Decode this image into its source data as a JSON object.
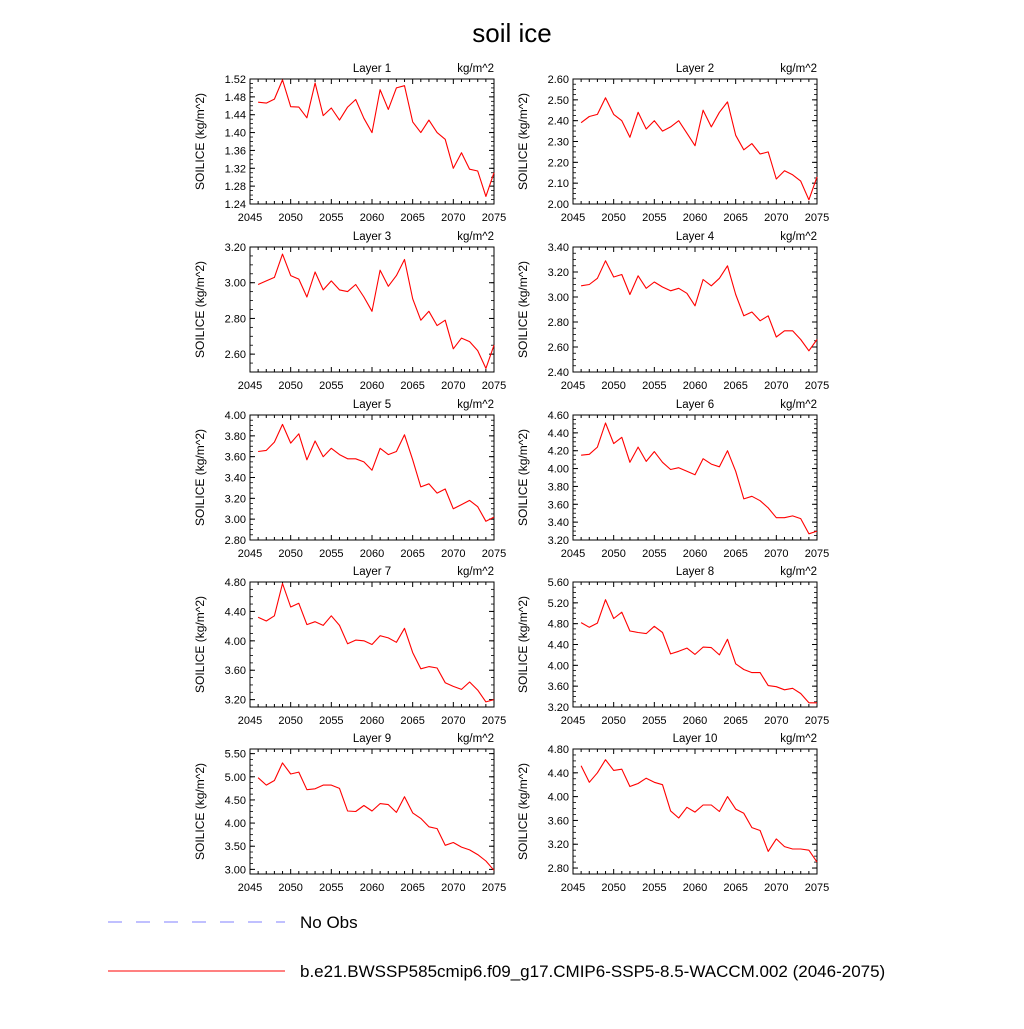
{
  "figure": {
    "title": "soil ice",
    "legend": [
      {
        "label": "No Obs",
        "color": "#8080ff",
        "style": "dashed"
      },
      {
        "label": "b.e21.BWSSP585cmip6.f09_g17.CMIP6-SSP5-8.5-WACCM.002 (2046-2075)",
        "color": "#ff0000",
        "style": "solid"
      }
    ]
  },
  "chart_data": [
    {
      "type": "line",
      "title": "Layer 1",
      "units": "kg/m^2",
      "ylabel": "SOILICE  (kg/m^2)",
      "xlabel": "",
      "xlim": [
        2045,
        2075
      ],
      "ylim": [
        1.24,
        1.52
      ],
      "xticks": [
        "2045",
        "2050",
        "2055",
        "2060",
        "2065",
        "2070",
        "2075"
      ],
      "yticks": [
        "1.24",
        "1.28",
        "1.32",
        "1.36",
        "1.40",
        "1.44",
        "1.48",
        "1.52"
      ],
      "x": [
        2046,
        2047,
        2048,
        2049,
        2050,
        2051,
        2052,
        2053,
        2054,
        2055,
        2056,
        2057,
        2058,
        2059,
        2060,
        2061,
        2062,
        2063,
        2064,
        2065,
        2066,
        2067,
        2068,
        2069,
        2070,
        2071,
        2072,
        2073,
        2074,
        2075
      ],
      "series": [
        {
          "name": "b.e21.BWSSP585cmip6.f09_g17.CMIP6-SSP5-8.5-WACCM.002 (2046-2075)",
          "color": "#ff0000",
          "values": [
            1.468,
            1.466,
            1.475,
            1.518,
            1.458,
            1.457,
            1.433,
            1.511,
            1.438,
            1.455,
            1.428,
            1.457,
            1.474,
            1.432,
            1.4,
            1.496,
            1.452,
            1.5,
            1.505,
            1.424,
            1.4,
            1.428,
            1.4,
            1.385,
            1.32,
            1.355,
            1.318,
            1.314,
            1.257,
            1.31
          ]
        }
      ]
    },
    {
      "type": "line",
      "title": "Layer 2",
      "units": "kg/m^2",
      "ylabel": "SOILICE  (kg/m^2)",
      "xlabel": "",
      "xlim": [
        2045,
        2075
      ],
      "ylim": [
        2.0,
        2.6
      ],
      "xticks": [
        "2045",
        "2050",
        "2055",
        "2060",
        "2065",
        "2070",
        "2075"
      ],
      "yticks": [
        "2.00",
        "2.10",
        "2.20",
        "2.30",
        "2.40",
        "2.50",
        "2.60"
      ],
      "x": [
        2046,
        2047,
        2048,
        2049,
        2050,
        2051,
        2052,
        2053,
        2054,
        2055,
        2056,
        2057,
        2058,
        2059,
        2060,
        2061,
        2062,
        2063,
        2064,
        2065,
        2066,
        2067,
        2068,
        2069,
        2070,
        2071,
        2072,
        2073,
        2074,
        2075
      ],
      "series": [
        {
          "name": "b.e21.BWSSP585cmip6.f09_g17.CMIP6-SSP5-8.5-WACCM.002 (2046-2075)",
          "color": "#ff0000",
          "values": [
            2.39,
            2.42,
            2.43,
            2.51,
            2.43,
            2.4,
            2.32,
            2.44,
            2.36,
            2.4,
            2.35,
            2.37,
            2.4,
            2.34,
            2.28,
            2.45,
            2.37,
            2.44,
            2.49,
            2.33,
            2.26,
            2.29,
            2.24,
            2.25,
            2.12,
            2.16,
            2.14,
            2.11,
            2.02,
            2.13
          ]
        }
      ]
    },
    {
      "type": "line",
      "title": "Layer 3",
      "units": "kg/m^2",
      "ylabel": "SOILICE  (kg/m^2)",
      "xlabel": "",
      "xlim": [
        2045,
        2075
      ],
      "ylim": [
        2.5,
        3.2
      ],
      "xticks": [
        "2045",
        "2050",
        "2055",
        "2060",
        "2065",
        "2070",
        "2075"
      ],
      "yticks": [
        "2.60",
        "2.80",
        "3.00",
        "3.20"
      ],
      "x": [
        2046,
        2047,
        2048,
        2049,
        2050,
        2051,
        2052,
        2053,
        2054,
        2055,
        2056,
        2057,
        2058,
        2059,
        2060,
        2061,
        2062,
        2063,
        2064,
        2065,
        2066,
        2067,
        2068,
        2069,
        2070,
        2071,
        2072,
        2073,
        2074,
        2075
      ],
      "series": [
        {
          "name": "b.e21.BWSSP585cmip6.f09_g17.CMIP6-SSP5-8.5-WACCM.002 (2046-2075)",
          "color": "#ff0000",
          "values": [
            2.99,
            3.01,
            3.03,
            3.16,
            3.04,
            3.02,
            2.92,
            3.06,
            2.96,
            3.01,
            2.96,
            2.95,
            2.99,
            2.92,
            2.84,
            3.07,
            2.98,
            3.04,
            3.13,
            2.91,
            2.79,
            2.84,
            2.76,
            2.79,
            2.63,
            2.69,
            2.67,
            2.62,
            2.52,
            2.65
          ]
        }
      ]
    },
    {
      "type": "line",
      "title": "Layer 4",
      "units": "kg/m^2",
      "ylabel": "SOILICE  (kg/m^2)",
      "xlabel": "",
      "xlim": [
        2045,
        2075
      ],
      "ylim": [
        2.4,
        3.4
      ],
      "xticks": [
        "2045",
        "2050",
        "2055",
        "2060",
        "2065",
        "2070",
        "2075"
      ],
      "yticks": [
        "2.40",
        "2.60",
        "2.80",
        "3.00",
        "3.20",
        "3.40"
      ],
      "x": [
        2046,
        2047,
        2048,
        2049,
        2050,
        2051,
        2052,
        2053,
        2054,
        2055,
        2056,
        2057,
        2058,
        2059,
        2060,
        2061,
        2062,
        2063,
        2064,
        2065,
        2066,
        2067,
        2068,
        2069,
        2070,
        2071,
        2072,
        2073,
        2074,
        2075
      ],
      "series": [
        {
          "name": "b.e21.BWSSP585cmip6.f09_g17.CMIP6-SSP5-8.5-WACCM.002 (2046-2075)",
          "color": "#ff0000",
          "values": [
            3.09,
            3.1,
            3.15,
            3.29,
            3.16,
            3.18,
            3.02,
            3.17,
            3.07,
            3.12,
            3.08,
            3.05,
            3.07,
            3.03,
            2.93,
            3.14,
            3.09,
            3.15,
            3.25,
            3.02,
            2.85,
            2.88,
            2.81,
            2.85,
            2.68,
            2.73,
            2.73,
            2.66,
            2.57,
            2.66
          ]
        }
      ]
    },
    {
      "type": "line",
      "title": "Layer 5",
      "units": "kg/m^2",
      "ylabel": "SOILICE  (kg/m^2)",
      "xlabel": "",
      "xlim": [
        2045,
        2075
      ],
      "ylim": [
        2.8,
        4.0
      ],
      "xticks": [
        "2045",
        "2050",
        "2055",
        "2060",
        "2065",
        "2070",
        "2075"
      ],
      "yticks": [
        "2.80",
        "3.00",
        "3.20",
        "3.40",
        "3.60",
        "3.80",
        "4.00"
      ],
      "x": [
        2046,
        2047,
        2048,
        2049,
        2050,
        2051,
        2052,
        2053,
        2054,
        2055,
        2056,
        2057,
        2058,
        2059,
        2060,
        2061,
        2062,
        2063,
        2064,
        2065,
        2066,
        2067,
        2068,
        2069,
        2070,
        2071,
        2072,
        2073,
        2074,
        2075
      ],
      "series": [
        {
          "name": "b.e21.BWSSP585cmip6.f09_g17.CMIP6-SSP5-8.5-WACCM.002 (2046-2075)",
          "color": "#ff0000",
          "values": [
            3.65,
            3.66,
            3.74,
            3.91,
            3.73,
            3.82,
            3.57,
            3.75,
            3.6,
            3.68,
            3.62,
            3.58,
            3.58,
            3.55,
            3.47,
            3.68,
            3.62,
            3.65,
            3.81,
            3.57,
            3.31,
            3.34,
            3.25,
            3.29,
            3.1,
            3.14,
            3.18,
            3.12,
            2.98,
            3.02
          ]
        }
      ]
    },
    {
      "type": "line",
      "title": "Layer 6",
      "units": "kg/m^2",
      "ylabel": "SOILICE  (kg/m^2)",
      "xlabel": "",
      "xlim": [
        2045,
        2075
      ],
      "ylim": [
        3.2,
        4.6
      ],
      "xticks": [
        "2045",
        "2050",
        "2055",
        "2060",
        "2065",
        "2070",
        "2075"
      ],
      "yticks": [
        "3.20",
        "3.40",
        "3.60",
        "3.80",
        "4.00",
        "4.20",
        "4.40",
        "4.60"
      ],
      "x": [
        2046,
        2047,
        2048,
        2049,
        2050,
        2051,
        2052,
        2053,
        2054,
        2055,
        2056,
        2057,
        2058,
        2059,
        2060,
        2061,
        2062,
        2063,
        2064,
        2065,
        2066,
        2067,
        2068,
        2069,
        2070,
        2071,
        2072,
        2073,
        2074,
        2075
      ],
      "series": [
        {
          "name": "b.e21.BWSSP585cmip6.f09_g17.CMIP6-SSP5-8.5-WACCM.002 (2046-2075)",
          "color": "#ff0000",
          "values": [
            4.15,
            4.16,
            4.24,
            4.51,
            4.28,
            4.35,
            4.07,
            4.24,
            4.08,
            4.19,
            4.07,
            3.99,
            4.01,
            3.97,
            3.93,
            4.11,
            4.05,
            4.02,
            4.2,
            3.97,
            3.66,
            3.69,
            3.64,
            3.56,
            3.45,
            3.45,
            3.47,
            3.44,
            3.27,
            3.3
          ]
        }
      ]
    },
    {
      "type": "line",
      "title": "Layer 7",
      "units": "kg/m^2",
      "ylabel": "SOILICE  (kg/m^2)",
      "xlabel": "",
      "xlim": [
        2045,
        2075
      ],
      "ylim": [
        3.1,
        4.8
      ],
      "xticks": [
        "2045",
        "2050",
        "2055",
        "2060",
        "2065",
        "2070",
        "2075"
      ],
      "yticks": [
        "3.20",
        "3.60",
        "4.00",
        "4.40",
        "4.80"
      ],
      "x": [
        2046,
        2047,
        2048,
        2049,
        2050,
        2051,
        2052,
        2053,
        2054,
        2055,
        2056,
        2057,
        2058,
        2059,
        2060,
        2061,
        2062,
        2063,
        2064,
        2065,
        2066,
        2067,
        2068,
        2069,
        2070,
        2071,
        2072,
        2073,
        2074,
        2075
      ],
      "series": [
        {
          "name": "b.e21.BWSSP585cmip6.f09_g17.CMIP6-SSP5-8.5-WACCM.002 (2046-2075)",
          "color": "#ff0000",
          "values": [
            4.32,
            4.27,
            4.34,
            4.78,
            4.46,
            4.51,
            4.22,
            4.26,
            4.21,
            4.34,
            4.21,
            3.96,
            4.01,
            4.0,
            3.95,
            4.07,
            4.04,
            3.98,
            4.17,
            3.84,
            3.62,
            3.65,
            3.63,
            3.43,
            3.38,
            3.34,
            3.44,
            3.33,
            3.17,
            3.2
          ]
        }
      ]
    },
    {
      "type": "line",
      "title": "Layer 8",
      "units": "kg/m^2",
      "ylabel": "SOILICE  (kg/m^2)",
      "xlabel": "",
      "xlim": [
        2045,
        2075
      ],
      "ylim": [
        3.2,
        5.6
      ],
      "xticks": [
        "2045",
        "2050",
        "2055",
        "2060",
        "2065",
        "2070",
        "2075"
      ],
      "yticks": [
        "3.20",
        "3.60",
        "4.00",
        "4.40",
        "4.80",
        "5.20",
        "5.60"
      ],
      "x": [
        2046,
        2047,
        2048,
        2049,
        2050,
        2051,
        2052,
        2053,
        2054,
        2055,
        2056,
        2057,
        2058,
        2059,
        2060,
        2061,
        2062,
        2063,
        2064,
        2065,
        2066,
        2067,
        2068,
        2069,
        2070,
        2071,
        2072,
        2073,
        2074,
        2075
      ],
      "series": [
        {
          "name": "b.e21.BWSSP585cmip6.f09_g17.CMIP6-SSP5-8.5-WACCM.002 (2046-2075)",
          "color": "#ff0000",
          "values": [
            4.82,
            4.73,
            4.81,
            5.26,
            4.9,
            5.02,
            4.66,
            4.63,
            4.61,
            4.75,
            4.63,
            4.22,
            4.27,
            4.33,
            4.21,
            4.35,
            4.34,
            4.2,
            4.5,
            4.03,
            3.92,
            3.86,
            3.86,
            3.61,
            3.59,
            3.53,
            3.56,
            3.46,
            3.28,
            3.28
          ]
        }
      ]
    },
    {
      "type": "line",
      "title": "Layer 9",
      "units": "kg/m^2",
      "ylabel": "SOILICE  (kg/m^2)",
      "xlabel": "",
      "xlim": [
        2045,
        2075
      ],
      "ylim": [
        2.9,
        5.6
      ],
      "xticks": [
        "2045",
        "2050",
        "2055",
        "2060",
        "2065",
        "2070",
        "2075"
      ],
      "yticks": [
        "3.00",
        "3.50",
        "4.00",
        "4.50",
        "5.00",
        "5.50"
      ],
      "x": [
        2046,
        2047,
        2048,
        2049,
        2050,
        2051,
        2052,
        2053,
        2054,
        2055,
        2056,
        2057,
        2058,
        2059,
        2060,
        2061,
        2062,
        2063,
        2064,
        2065,
        2066,
        2067,
        2068,
        2069,
        2070,
        2071,
        2072,
        2073,
        2074,
        2075
      ],
      "series": [
        {
          "name": "b.e21.BWSSP585cmip6.f09_g17.CMIP6-SSP5-8.5-WACCM.002 (2046-2075)",
          "color": "#ff0000",
          "values": [
            4.98,
            4.82,
            4.92,
            5.3,
            5.06,
            5.1,
            4.72,
            4.74,
            4.82,
            4.82,
            4.75,
            4.26,
            4.25,
            4.38,
            4.26,
            4.42,
            4.4,
            4.23,
            4.57,
            4.22,
            4.1,
            3.92,
            3.88,
            3.52,
            3.58,
            3.48,
            3.42,
            3.32,
            3.18,
            2.98
          ]
        }
      ]
    },
    {
      "type": "line",
      "title": "Layer 10",
      "units": "kg/m^2",
      "ylabel": "SOILICE  (kg/m^2)",
      "xlabel": "",
      "xlim": [
        2045,
        2075
      ],
      "ylim": [
        2.7,
        4.8
      ],
      "xticks": [
        "2045",
        "2050",
        "2055",
        "2060",
        "2065",
        "2070",
        "2075"
      ],
      "yticks": [
        "2.80",
        "3.20",
        "3.60",
        "4.00",
        "4.40",
        "4.80"
      ],
      "x": [
        2046,
        2047,
        2048,
        2049,
        2050,
        2051,
        2052,
        2053,
        2054,
        2055,
        2056,
        2057,
        2058,
        2059,
        2060,
        2061,
        2062,
        2063,
        2064,
        2065,
        2066,
        2067,
        2068,
        2069,
        2070,
        2071,
        2072,
        2073,
        2074,
        2075
      ],
      "series": [
        {
          "name": "b.e21.BWSSP585cmip6.f09_g17.CMIP6-SSP5-8.5-WACCM.002 (2046-2075)",
          "color": "#ff0000",
          "values": [
            4.52,
            4.24,
            4.4,
            4.62,
            4.44,
            4.46,
            4.17,
            4.22,
            4.31,
            4.24,
            4.2,
            3.76,
            3.64,
            3.82,
            3.74,
            3.86,
            3.86,
            3.75,
            4.0,
            3.79,
            3.72,
            3.48,
            3.43,
            3.08,
            3.29,
            3.16,
            3.12,
            3.12,
            3.1,
            2.9
          ]
        }
      ]
    }
  ]
}
